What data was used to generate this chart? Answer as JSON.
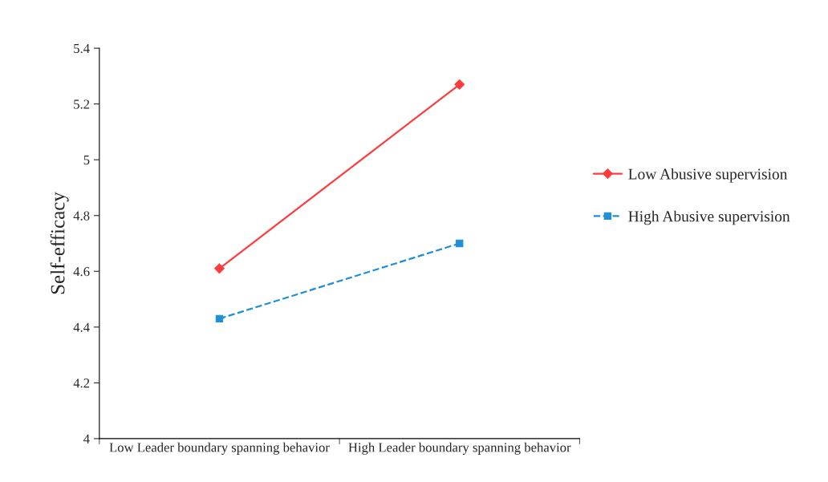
{
  "chart_data": {
    "type": "line",
    "ylabel": "Self-efficacy",
    "categories": [
      "Low Leader boundary spanning behavior",
      "High Leader boundary spanning behavior"
    ],
    "series": [
      {
        "name": "Low Abusive supervision",
        "color": "#ff3b3b",
        "values": [
          4.61,
          5.27
        ],
        "marker": "diamond",
        "line_style": "solid"
      },
      {
        "name": "High Abusive supervision",
        "color": "#1f8fd6",
        "values": [
          4.43,
          4.7
        ],
        "marker": "square",
        "line_style": "dashed"
      }
    ],
    "ylim": [
      4,
      5.4
    ],
    "yticks": [
      {
        "value": 4,
        "label": "4"
      },
      {
        "value": 4.2,
        "label": "4.2"
      },
      {
        "value": 4.4,
        "label": "4.4"
      },
      {
        "value": 4.6,
        "label": "4.6"
      },
      {
        "value": 4.8,
        "label": "4.8"
      },
      {
        "value": 5,
        "label": "5"
      },
      {
        "value": 5.2,
        "label": "5.2"
      },
      {
        "value": 5.4,
        "label": "5.4"
      }
    ],
    "grid": false,
    "legend": "right"
  }
}
